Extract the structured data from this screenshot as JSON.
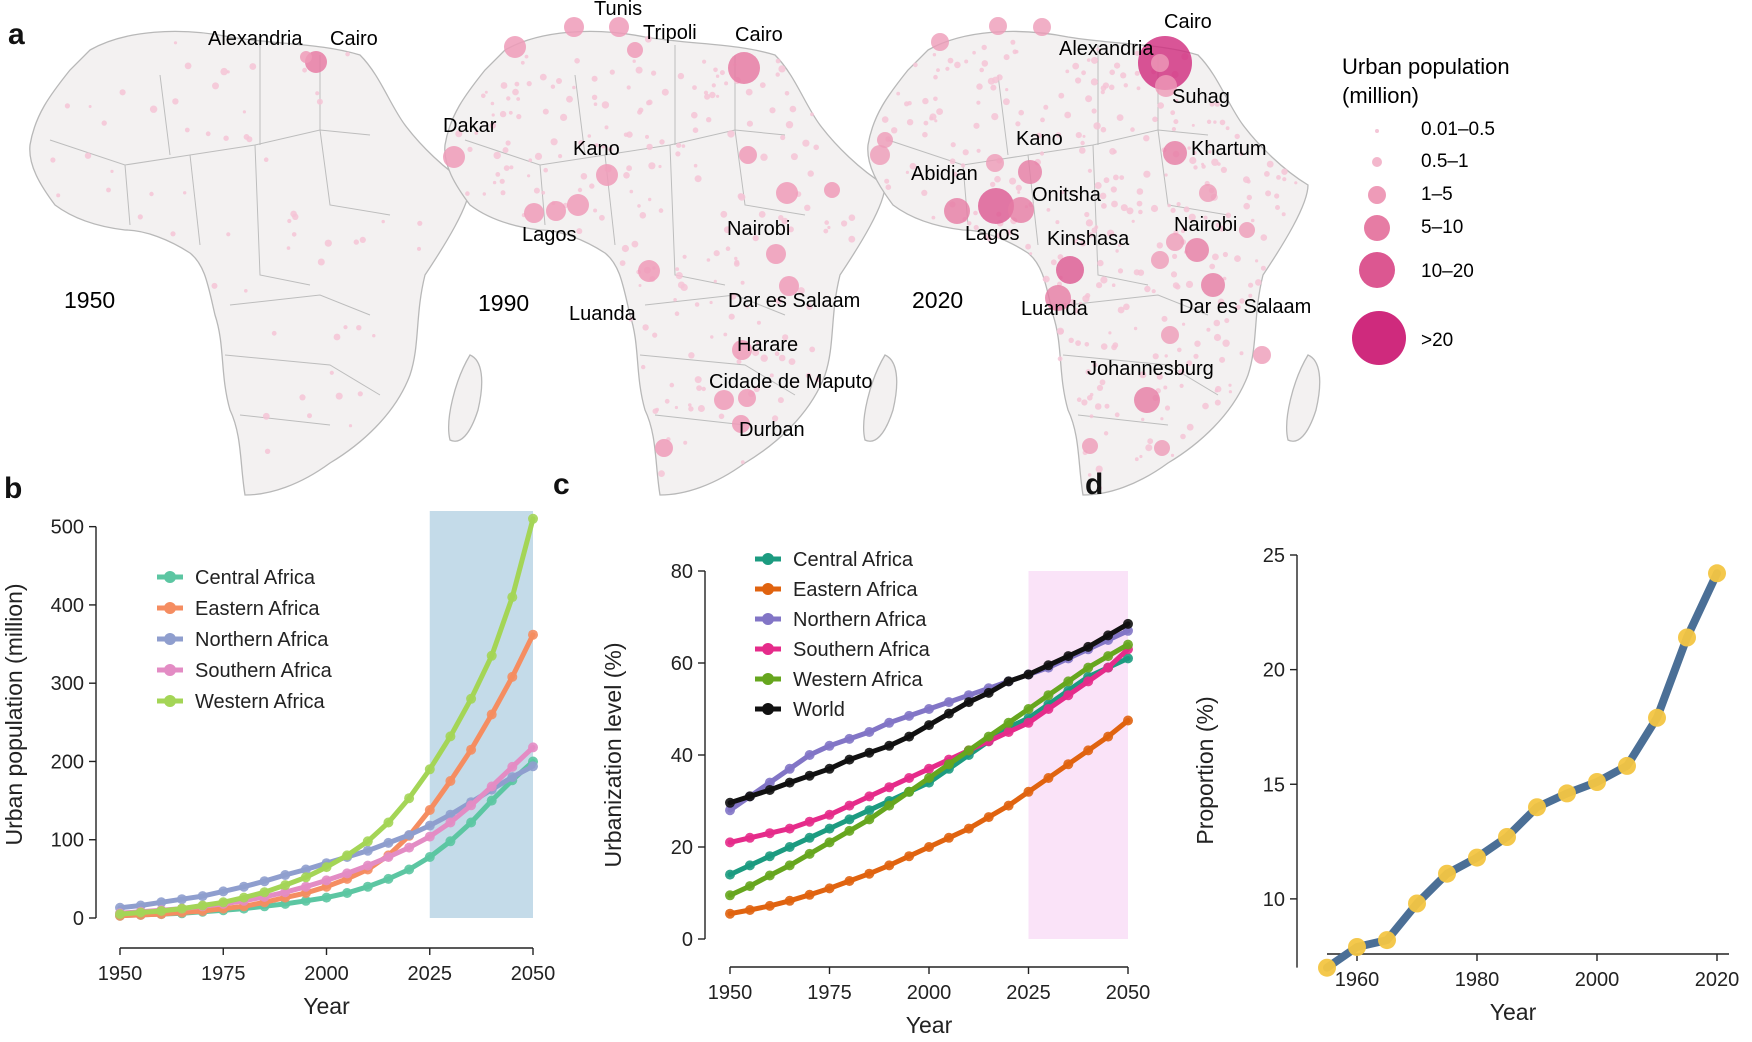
{
  "panel_a": {
    "letter": "a",
    "maps": [
      {
        "year": "1950",
        "cities": [
          {
            "name": "Alexandria",
            "size": "1-5"
          },
          {
            "name": "Cairo",
            "size": "1-5"
          }
        ]
      },
      {
        "year": "1990",
        "cities": [
          {
            "name": "Tunis",
            "size": "1-5"
          },
          {
            "name": "Tripoli",
            "size": "1-5"
          },
          {
            "name": "Cairo",
            "size": "5-10"
          },
          {
            "name": "Dakar",
            "size": "1-5"
          },
          {
            "name": "Kano",
            "size": "1-5"
          },
          {
            "name": "Lagos",
            "size": "1-5"
          },
          {
            "name": "Nairobi",
            "size": "1-5"
          },
          {
            "name": "Luanda",
            "size": "1-5"
          },
          {
            "name": "Dar es Salaam",
            "size": "1-5"
          },
          {
            "name": "Harare",
            "size": "1-5"
          },
          {
            "name": "Cidade de Maputo",
            "size": "1-5"
          },
          {
            "name": "Durban",
            "size": "1-5"
          }
        ]
      },
      {
        "year": "2020",
        "cities": [
          {
            "name": "Cairo",
            "size": ">20"
          },
          {
            "name": "Alexandria",
            "size": "1-5"
          },
          {
            "name": "Suhag",
            "size": "1-5"
          },
          {
            "name": "Kano",
            "size": "1-5"
          },
          {
            "name": "Khartum",
            "size": "5-10"
          },
          {
            "name": "Abidjan",
            "size": "5-10"
          },
          {
            "name": "Onitsha",
            "size": "5-10"
          },
          {
            "name": "Lagos",
            "size": "10-20"
          },
          {
            "name": "Kinshasa",
            "size": "10-20"
          },
          {
            "name": "Nairobi",
            "size": "5-10"
          },
          {
            "name": "Luanda",
            "size": "5-10"
          },
          {
            "name": "Dar es Salaam",
            "size": "5-10"
          },
          {
            "name": "Johannesburg",
            "size": "5-10"
          }
        ]
      }
    ],
    "legend": {
      "title_line1": "Urban population",
      "title_line2": "(million)",
      "items": [
        "0.01–0.5",
        "0.5–1",
        "1–5",
        "5–10",
        "10–20",
        ">20"
      ],
      "colors": [
        "#f4c6d7",
        "#f3b7cc",
        "#ee9bb8",
        "#e67ca4",
        "#dc5791",
        "#cf2a7d"
      ]
    },
    "land_color": "#f3f1f1",
    "border_color": "#b3b3b3",
    "dot_color": "#f5c4d6"
  },
  "chart_data": [
    {
      "panel": "b",
      "type": "line",
      "xlabel": "Year",
      "ylabel": "Urban population (million)",
      "xlim": [
        1950,
        2050
      ],
      "ylim": [
        0,
        520
      ],
      "xticks": [
        1950,
        1975,
        2000,
        2025,
        2050
      ],
      "yticks": [
        0,
        100,
        200,
        300,
        400,
        500
      ],
      "shaded_region": {
        "from": 2025,
        "to": 2050,
        "color": "#c4dbe9"
      },
      "x": [
        1950,
        1955,
        1960,
        1965,
        1970,
        1975,
        1980,
        1985,
        1990,
        1995,
        2000,
        2005,
        2010,
        2015,
        2020,
        2025,
        2030,
        2035,
        2040,
        2045,
        2050
      ],
      "series": [
        {
          "name": "Central Africa",
          "color": "#5cc6a2",
          "values": [
            3,
            4,
            5,
            6,
            8,
            10,
            12,
            15,
            18,
            22,
            26,
            32,
            40,
            50,
            62,
            78,
            98,
            122,
            150,
            176,
            200
          ]
        },
        {
          "name": "Eastern Africa",
          "color": "#f58d61",
          "values": [
            3,
            4,
            5,
            7,
            9,
            12,
            15,
            20,
            26,
            32,
            40,
            50,
            62,
            80,
            105,
            138,
            175,
            215,
            260,
            308,
            362
          ]
        },
        {
          "name": "Northern Africa",
          "color": "#8f9ece",
          "values": [
            13,
            16,
            20,
            24,
            28,
            34,
            40,
            47,
            55,
            62,
            70,
            78,
            86,
            96,
            106,
            118,
            132,
            148,
            164,
            180,
            194
          ]
        },
        {
          "name": "Southern Africa",
          "color": "#e38cc4",
          "values": [
            6,
            8,
            10,
            12,
            15,
            18,
            22,
            27,
            33,
            40,
            48,
            57,
            67,
            78,
            90,
            104,
            122,
            144,
            168,
            193,
            218
          ]
        },
        {
          "name": "Western Africa",
          "color": "#a4d556",
          "values": [
            5,
            7,
            9,
            12,
            16,
            20,
            26,
            33,
            42,
            52,
            65,
            80,
            98,
            122,
            153,
            190,
            232,
            280,
            335,
            410,
            510
          ]
        }
      ]
    },
    {
      "panel": "c",
      "type": "line",
      "xlabel": "Year",
      "ylabel": "Urbanization level (%)",
      "xlim": [
        1950,
        2050
      ],
      "ylim": [
        0,
        80
      ],
      "xticks": [
        1950,
        1975,
        2000,
        2025,
        2050
      ],
      "yticks": [
        0,
        20,
        40,
        60,
        80
      ],
      "shaded_region": {
        "from": 2025,
        "to": 2050,
        "color": "#fae3f8"
      },
      "x": [
        1950,
        1955,
        1960,
        1965,
        1970,
        1975,
        1980,
        1985,
        1990,
        1995,
        2000,
        2005,
        2010,
        2015,
        2020,
        2025,
        2030,
        2035,
        2040,
        2045,
        2050
      ],
      "series": [
        {
          "name": "Central Africa",
          "color": "#1c9b80",
          "values": [
            14,
            16,
            18,
            20,
            22,
            24,
            26,
            28,
            30,
            32,
            34,
            37,
            40,
            43,
            46,
            48,
            51,
            54,
            57,
            59,
            61
          ]
        },
        {
          "name": "Eastern Africa",
          "color": "#e0630f",
          "values": [
            5.5,
            6.3,
            7.2,
            8.3,
            9.6,
            11,
            12.6,
            14.2,
            16,
            18,
            20,
            22,
            24,
            26.5,
            29,
            32,
            35,
            38,
            41,
            44,
            47.5
          ]
        },
        {
          "name": "Northern Africa",
          "color": "#8275c6",
          "values": [
            28,
            31,
            34,
            37,
            40,
            42,
            43.5,
            45,
            47,
            48.5,
            50,
            51.5,
            53,
            54.5,
            56,
            57.5,
            59,
            61,
            63,
            65,
            67
          ]
        },
        {
          "name": "Southern Africa",
          "color": "#e52b8a",
          "values": [
            21,
            22,
            23,
            24,
            25.5,
            27,
            29,
            31,
            33,
            35,
            37,
            39,
            41,
            43,
            45,
            47,
            50,
            53,
            56,
            59,
            63
          ]
        },
        {
          "name": "Western Africa",
          "color": "#66a61e",
          "values": [
            9.5,
            11.5,
            13.8,
            16,
            18.5,
            21,
            23.5,
            26,
            29,
            32,
            35,
            38,
            41,
            44,
            47,
            50,
            53,
            56,
            59,
            61.5,
            64
          ]
        },
        {
          "name": "World",
          "color": "#111111",
          "values": [
            29.6,
            31,
            32.4,
            34,
            35.5,
            37,
            39,
            40.5,
            42,
            44,
            46.5,
            49,
            51.5,
            53.5,
            56,
            57.5,
            59.5,
            61.5,
            63.5,
            66,
            68.5
          ]
        }
      ]
    },
    {
      "panel": "d",
      "type": "line",
      "xlabel": "Year",
      "ylabel": "Proportion (%)",
      "xlim": [
        1950,
        2022
      ],
      "ylim": [
        6.2,
        25
      ],
      "xticks": [
        1960,
        1980,
        2000,
        2020
      ],
      "yticks": [
        10,
        15,
        20,
        25
      ],
      "x": [
        1955,
        1960,
        1965,
        1970,
        1975,
        1980,
        1985,
        1990,
        1995,
        2000,
        2005,
        2010,
        2015,
        2020
      ],
      "series": [
        {
          "name": "Proportion",
          "color": "#4b6f96",
          "marker_color": "#f3c542",
          "values": [
            7.0,
            7.9,
            8.2,
            9.8,
            11.1,
            11.8,
            12.7,
            14.0,
            14.6,
            15.1,
            15.8,
            17.9,
            21.4,
            24.2
          ]
        }
      ]
    }
  ]
}
